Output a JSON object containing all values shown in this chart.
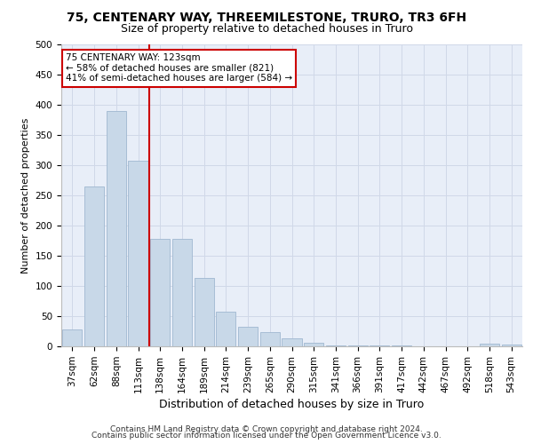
{
  "title": "75, CENTENARY WAY, THREEMILESTONE, TRURO, TR3 6FH",
  "subtitle": "Size of property relative to detached houses in Truro",
  "xlabel": "Distribution of detached houses by size in Truro",
  "ylabel": "Number of detached properties",
  "categories": [
    "37sqm",
    "62sqm",
    "88sqm",
    "113sqm",
    "138sqm",
    "164sqm",
    "189sqm",
    "214sqm",
    "239sqm",
    "265sqm",
    "290sqm",
    "315sqm",
    "341sqm",
    "366sqm",
    "391sqm",
    "417sqm",
    "442sqm",
    "467sqm",
    "492sqm",
    "518sqm",
    "543sqm"
  ],
  "values": [
    28,
    265,
    390,
    308,
    178,
    178,
    113,
    57,
    32,
    24,
    13,
    6,
    2,
    2,
    1,
    1,
    0,
    0,
    0,
    5,
    3
  ],
  "bar_color": "#c8d8e8",
  "bar_edge_color": "#a0b8d0",
  "vline_color": "#cc0000",
  "vline_index": 3.5,
  "annotation_text": "75 CENTENARY WAY: 123sqm\n← 58% of detached houses are smaller (821)\n41% of semi-detached houses are larger (584) →",
  "annotation_box_color": "#ffffff",
  "annotation_box_edge": "#cc0000",
  "grid_color": "#d0d8e8",
  "background_color": "#e8eef8",
  "footer_line1": "Contains HM Land Registry data © Crown copyright and database right 2024.",
  "footer_line2": "Contains public sector information licensed under the Open Government Licence v3.0.",
  "title_fontsize": 10,
  "subtitle_fontsize": 9,
  "ylabel_fontsize": 8,
  "xlabel_fontsize": 9,
  "tick_fontsize": 7.5,
  "annotation_fontsize": 7.5,
  "footer_fontsize": 6.5,
  "ylim": [
    0,
    500
  ],
  "yticks": [
    0,
    50,
    100,
    150,
    200,
    250,
    300,
    350,
    400,
    450,
    500
  ]
}
